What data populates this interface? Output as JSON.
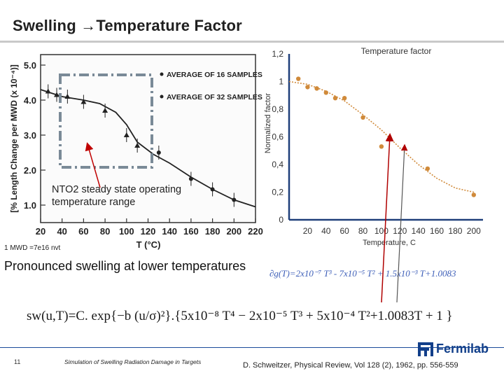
{
  "slide": {
    "title_left": "Swelling ",
    "title_arrow": "→",
    "title_right": "Temperature Factor",
    "nto2_label": "NTO2 steady state operating temperature range",
    "mwd_note": "1 MWD =7e16 nvt",
    "pronounced": "Pronounced swelling at lower temperatures",
    "poly_equation": "∂g(T)=2x10⁻⁷  T³ - 7x10⁻⁵ T² + 1.5x10⁻³  T+1.0083",
    "sw_equation": "sw(u,T)=C. exp{−b (u/σ)²}.{5x10⁻⁸ T⁴ − 2x10⁻⁵ T³ + 5x10⁻⁴ T²+1.0083T + 1 }",
    "footer_page": "11",
    "footer_text": "Simulation of Swelling Radiation Damage in Targets",
    "reference": "D. Schweitzer, Physical Review, Vol 128 (2), 1962, pp. 556-559",
    "logo_text": "Fermilab"
  },
  "chart_data": [
    {
      "type": "line",
      "title": "",
      "xlabel": "T (°C)",
      "ylabel": "[% Length Change per MWD (x 10⁻⁴)]",
      "xlim": [
        20,
        220
      ],
      "ylim": [
        0.5,
        5.3
      ],
      "xticks": [
        "20",
        "40",
        "60",
        "80",
        "100",
        "120",
        "140",
        "160",
        "180",
        "200",
        "220"
      ],
      "yticks": [
        "1.0",
        "2.0",
        "3.0",
        "4.0",
        "5.0"
      ],
      "legend": [
        "AVERAGE OF 16 SAMPLES",
        "AVERAGE OF 32 SAMPLES"
      ],
      "series": [
        {
          "name": "AVERAGE OF 16 SAMPLES",
          "marker": "triangle",
          "x": [
            27,
            35,
            45,
            60,
            80,
            100,
            110
          ],
          "y": [
            4.25,
            4.15,
            4.1,
            3.95,
            3.7,
            3.0,
            2.7
          ]
        },
        {
          "name": "AVERAGE OF 32 SAMPLES",
          "marker": "circle",
          "x": [
            130,
            160,
            180,
            200
          ],
          "y": [
            2.5,
            1.75,
            1.45,
            1.15
          ]
        }
      ],
      "curve": {
        "x": [
          20,
          40,
          60,
          75,
          90,
          100,
          110,
          125,
          140,
          160,
          180,
          200,
          220
        ],
        "y": [
          4.3,
          4.1,
          4.0,
          3.9,
          3.65,
          3.3,
          2.8,
          2.45,
          2.2,
          1.8,
          1.45,
          1.15,
          0.95
        ]
      }
    },
    {
      "type": "scatter",
      "title": "Temperature factor",
      "xlabel": "Temperature, C",
      "ylabel": "Normalized factor",
      "xlim": [
        0,
        210
      ],
      "ylim": [
        0,
        1.2
      ],
      "xticks": [
        "20",
        "40",
        "60",
        "80",
        "100",
        "120",
        "140",
        "160",
        "180",
        "200"
      ],
      "yticks": [
        "0",
        "0,2",
        "0,4",
        "0,6",
        "0,8",
        "1",
        "1,2"
      ],
      "series": [
        {
          "name": "Normalized factor",
          "x": [
            10,
            20,
            30,
            40,
            50,
            60,
            80,
            100,
            150,
            200
          ],
          "y": [
            1.02,
            0.96,
            0.95,
            0.92,
            0.88,
            0.88,
            0.74,
            0.53,
            0.37,
            0.18
          ]
        }
      ],
      "trend": {
        "x": [
          0,
          20,
          40,
          60,
          80,
          100,
          120,
          140,
          160,
          180,
          200
        ],
        "y": [
          1.0,
          0.98,
          0.93,
          0.86,
          0.76,
          0.65,
          0.52,
          0.4,
          0.3,
          0.23,
          0.2
        ]
      }
    }
  ]
}
